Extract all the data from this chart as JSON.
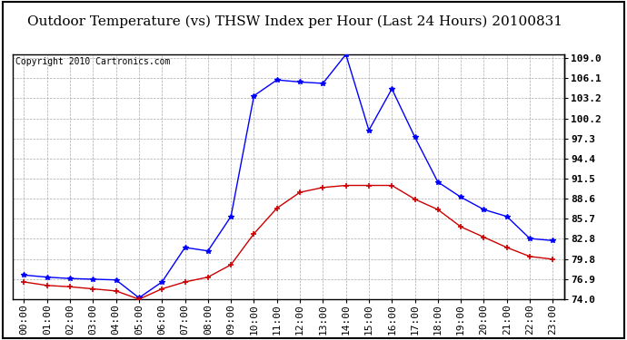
{
  "title": "Outdoor Temperature (vs) THSW Index per Hour (Last 24 Hours) 20100831",
  "copyright": "Copyright 2010 Cartronics.com",
  "hours": [
    "00:00",
    "01:00",
    "02:00",
    "03:00",
    "04:00",
    "05:00",
    "06:00",
    "07:00",
    "08:00",
    "09:00",
    "10:00",
    "11:00",
    "12:00",
    "13:00",
    "14:00",
    "15:00",
    "16:00",
    "17:00",
    "18:00",
    "19:00",
    "20:00",
    "21:00",
    "22:00",
    "23:00"
  ],
  "thsw": [
    77.5,
    77.2,
    77.0,
    76.9,
    76.8,
    74.2,
    76.5,
    81.5,
    81.0,
    86.0,
    103.5,
    105.8,
    105.5,
    105.3,
    109.5,
    98.5,
    104.5,
    97.5,
    91.0,
    88.8,
    87.0,
    86.0,
    82.8,
    82.5
  ],
  "temp": [
    76.5,
    76.0,
    75.8,
    75.5,
    75.2,
    74.0,
    75.5,
    76.5,
    77.2,
    79.0,
    83.5,
    87.2,
    89.5,
    90.2,
    90.5,
    90.5,
    90.5,
    88.5,
    87.0,
    84.5,
    83.0,
    81.5,
    80.2,
    79.8
  ],
  "thsw_color": "#0000ff",
  "temp_color": "#cc0000",
  "ylim": [
    74.0,
    109.5
  ],
  "yticks": [
    74.0,
    76.9,
    79.8,
    82.8,
    85.7,
    88.6,
    91.5,
    94.4,
    97.3,
    100.2,
    103.2,
    106.1,
    109.0
  ],
  "yticklabels": [
    "74.0",
    "76.9",
    "79.8",
    "82.8",
    "85.7",
    "88.6",
    "91.5",
    "94.4",
    "97.3",
    "100.2",
    "103.2",
    "106.1",
    "109.0"
  ],
  "background_color": "#ffffff",
  "plot_bg_color": "#ffffff",
  "grid_color": "#aaaaaa",
  "title_fontsize": 11,
  "tick_fontsize": 8,
  "copyright_fontsize": 7
}
